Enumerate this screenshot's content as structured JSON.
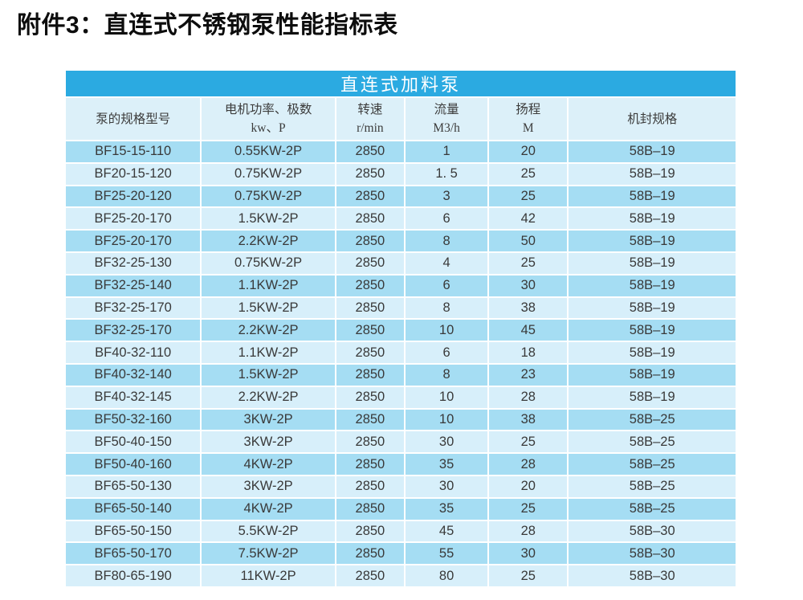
{
  "page_title": "附件3：直连式不锈钢泵性能指标表",
  "table": {
    "banner": "直连式加料泵",
    "columns": [
      {
        "key": "model",
        "line1": "泵的规格型号",
        "line2": ""
      },
      {
        "key": "power",
        "line1": "电机功率、极数",
        "line2": "kw、P"
      },
      {
        "key": "speed",
        "line1": "转速",
        "line2": "r/min"
      },
      {
        "key": "flow",
        "line1": "流量",
        "line2": "M3/h"
      },
      {
        "key": "head",
        "line1": "扬程",
        "line2": "M"
      },
      {
        "key": "seal",
        "line1": "机封规格",
        "line2": ""
      }
    ],
    "rows": [
      [
        "BF15-15-110",
        "0.55KW-2P",
        "2850",
        "1",
        "20",
        "58B–19"
      ],
      [
        "BF20-15-120",
        "0.75KW-2P",
        "2850",
        "1. 5",
        "25",
        "58B–19"
      ],
      [
        "BF25-20-120",
        "0.75KW-2P",
        "2850",
        "3",
        "25",
        "58B–19"
      ],
      [
        "BF25-20-170",
        "1.5KW-2P",
        "2850",
        "6",
        "42",
        "58B–19"
      ],
      [
        "BF25-20-170",
        "2.2KW-2P",
        "2850",
        "8",
        "50",
        "58B–19"
      ],
      [
        "BF32-25-130",
        "0.75KW-2P",
        "2850",
        "4",
        "25",
        "58B–19"
      ],
      [
        "BF32-25-140",
        "1.1KW-2P",
        "2850",
        "6",
        "30",
        "58B–19"
      ],
      [
        "BF32-25-170",
        "1.5KW-2P",
        "2850",
        "8",
        "38",
        "58B–19"
      ],
      [
        "BF32-25-170",
        "2.2KW-2P",
        "2850",
        "10",
        "45",
        "58B–19"
      ],
      [
        "BF40-32-110",
        "1.1KW-2P",
        "2850",
        "6",
        "18",
        "58B–19"
      ],
      [
        "BF40-32-140",
        "1.5KW-2P",
        "2850",
        "8",
        "23",
        "58B–19"
      ],
      [
        "BF40-32-145",
        "2.2KW-2P",
        "2850",
        "10",
        "28",
        "58B–19"
      ],
      [
        "BF50-32-160",
        "3KW-2P",
        "2850",
        "10",
        "38",
        "58B–25"
      ],
      [
        "BF50-40-150",
        "3KW-2P",
        "2850",
        "30",
        "25",
        "58B–25"
      ],
      [
        "BF50-40-160",
        "4KW-2P",
        "2850",
        "35",
        "28",
        "58B–25"
      ],
      [
        "BF65-50-130",
        "3KW-2P",
        "2850",
        "30",
        "20",
        "58B–25"
      ],
      [
        "BF65-50-140",
        "4KW-2P",
        "2850",
        "35",
        "25",
        "58B–25"
      ],
      [
        "BF65-50-150",
        "5.5KW-2P",
        "2850",
        "45",
        "28",
        "58B–30"
      ],
      [
        "BF65-50-170",
        "7.5KW-2P",
        "2850",
        "55",
        "30",
        "58B–30"
      ],
      [
        "BF80-65-190",
        "11KW-2P",
        "2850",
        "80",
        "25",
        "58B–30"
      ]
    ]
  },
  "colors": {
    "banner_bg": "#2baae1",
    "banner_text": "#ffffff",
    "header_row_bg": "#dcf0f9",
    "row_dark_bg": "#a5ddf3",
    "row_light_bg": "#d7effa",
    "cell_text": "#393939",
    "title_text": "#0d0d0d"
  }
}
